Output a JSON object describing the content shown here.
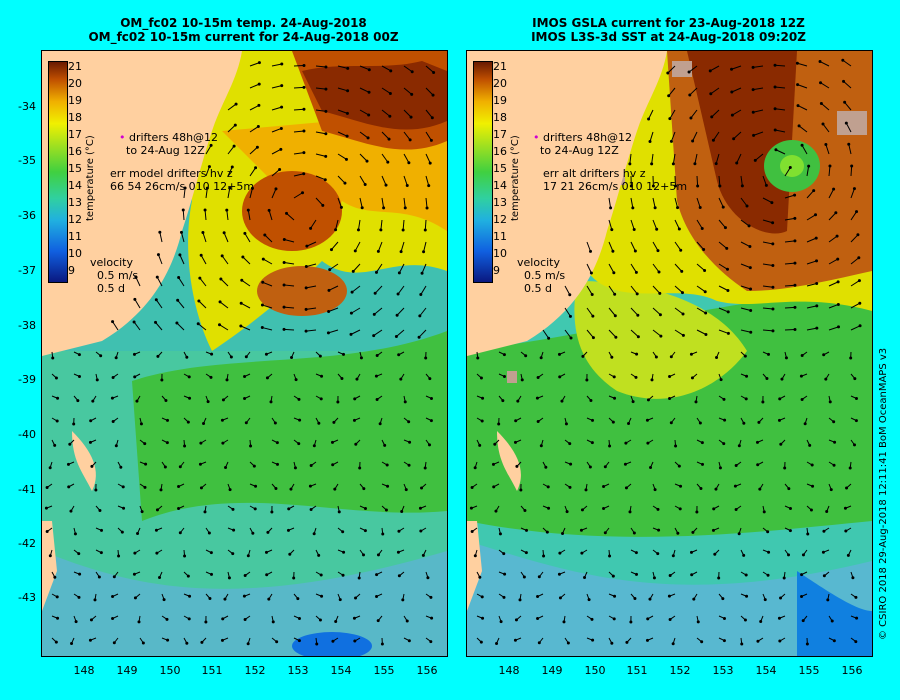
{
  "left_panel": {
    "title_line1": "OM_fc02 10-15m temp. 24-Aug-2018",
    "title_line2": "OM_fc02 10-15m current for 24-Aug-2018 00Z",
    "legend": {
      "drifters1": "drifters 48h@12",
      "drifters2": "to 24-Aug 12Z",
      "err1": "err model drifters hv z",
      "err2": "66 54 26cm/s 010 12+5m",
      "velocity": "velocity",
      "speed": "0.5 m/s",
      "days": "0.5 d"
    }
  },
  "right_panel": {
    "title_line1": "IMOS GSLA current for 23-Aug-2018 12Z",
    "title_line2": "IMOS L3S-3d SST at 24-Aug-2018 09:20Z",
    "legend": {
      "drifters1": "drifters 48h@12",
      "drifters2": "to 24-Aug 12Z",
      "err1": "err alt drifters hv z",
      "err2": "17 21 26cm/s 010 12+5m",
      "velocity": "velocity",
      "speed": "0.5 m/s",
      "days": "0.5 d"
    }
  },
  "colorbar": {
    "label": "temperature (°C)",
    "ticks": [
      "21",
      "20",
      "19",
      "18",
      "17",
      "16",
      "15",
      "14",
      "13",
      "12",
      "11",
      "10",
      "9"
    ]
  },
  "axes": {
    "lat_labels": [
      "-34",
      "-35",
      "-36",
      "-37",
      "-38",
      "-39",
      "-40",
      "-41",
      "-42",
      "-43"
    ],
    "lon_labels": [
      "148",
      "149",
      "150",
      "151",
      "152",
      "153",
      "154",
      "155",
      "156"
    ]
  },
  "credit": "© CSIRO 2018   29-Aug-2018 12:11:41 BoM OceanMAPS v3",
  "colors": {
    "background": "#00FFFF",
    "land": "#FFD0A0",
    "cool": "#40C0B0",
    "mid": "#40C040",
    "warm": "#E0E000",
    "hot": "#C06010"
  }
}
